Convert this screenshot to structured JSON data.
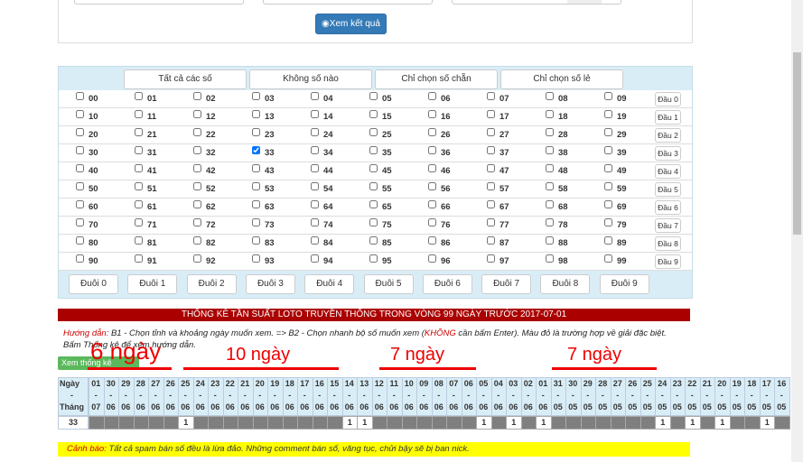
{
  "form": {
    "button": "Xem kết quả"
  },
  "quick_select": [
    "Tất cả các số",
    "Không số nào",
    "Chỉ chọn số chẵn",
    "Chỉ chọn số lẻ"
  ],
  "numbers": [
    [
      "00",
      "01",
      "02",
      "03",
      "04",
      "05",
      "06",
      "07",
      "08",
      "09"
    ],
    [
      "10",
      "11",
      "12",
      "13",
      "14",
      "15",
      "16",
      "17",
      "18",
      "19"
    ],
    [
      "20",
      "21",
      "22",
      "23",
      "24",
      "25",
      "26",
      "27",
      "28",
      "29"
    ],
    [
      "30",
      "31",
      "32",
      "33",
      "34",
      "35",
      "36",
      "37",
      "38",
      "39"
    ],
    [
      "40",
      "41",
      "42",
      "43",
      "44",
      "45",
      "46",
      "47",
      "48",
      "49"
    ],
    [
      "50",
      "51",
      "52",
      "53",
      "54",
      "55",
      "56",
      "57",
      "58",
      "59"
    ],
    [
      "60",
      "61",
      "62",
      "63",
      "64",
      "65",
      "66",
      "67",
      "68",
      "69"
    ],
    [
      "70",
      "71",
      "72",
      "73",
      "74",
      "75",
      "76",
      "77",
      "78",
      "79"
    ],
    [
      "80",
      "81",
      "82",
      "83",
      "84",
      "85",
      "86",
      "87",
      "88",
      "89"
    ],
    [
      "90",
      "91",
      "92",
      "93",
      "94",
      "95",
      "96",
      "97",
      "98",
      "99"
    ]
  ],
  "checked": [
    "33"
  ],
  "heads": [
    "Đầu 0",
    "Đầu 1",
    "Đầu 2",
    "Đầu 3",
    "Đầu 4",
    "Đầu 5",
    "Đầu 6",
    "Đầu 7",
    "Đầu 8",
    "Đầu 9"
  ],
  "tails": [
    "Đuôi 0",
    "Đuôi 1",
    "Đuôi 2",
    "Đuôi 3",
    "Đuôi 4",
    "Đuôi 5",
    "Đuôi 6",
    "Đuôi 7",
    "Đuôi 8",
    "Đuôi 9"
  ],
  "stats": {
    "title": "THỐNG KÊ TẦN SUẤT LOTO TRUYỀN THỐNG TRONG VÒNG 99 NGÀY TRƯỚC 2017-07-01",
    "guide": {
      "label": "Hướng dẫn:",
      "part1": " B1 - Chọn tỉnh và khoảng ngày muốn xem. => B2 - Chọn nhanh bộ số muốn xem (",
      "emphasis": "KHÔNG",
      "part2": " cần bấm Enter). Màu đỏ là trường hợp về giải đặc biệt.",
      "line2": "Bấm Thống kê để xem hướng dẫn."
    },
    "button": "Xem thống kê",
    "annotations": [
      "6 ngày",
      "10 ngày",
      "7 ngày",
      "7 ngày"
    ],
    "table": {
      "day_header": "Ngày",
      "separator": "-",
      "month_header": "Tháng",
      "days": [
        "01",
        "30",
        "29",
        "28",
        "27",
        "26",
        "25",
        "24",
        "23",
        "22",
        "21",
        "20",
        "19",
        "18",
        "17",
        "16",
        "15",
        "14",
        "13",
        "12",
        "11",
        "10",
        "09",
        "08",
        "07",
        "06",
        "05",
        "04",
        "03",
        "02",
        "01",
        "31",
        "30",
        "29",
        "28",
        "27",
        "26",
        "25",
        "24",
        "23",
        "22",
        "21",
        "20",
        "19",
        "18",
        "17",
        "16"
      ],
      "months": [
        "07",
        "06",
        "06",
        "06",
        "06",
        "06",
        "06",
        "06",
        "06",
        "06",
        "06",
        "06",
        "06",
        "06",
        "06",
        "06",
        "06",
        "06",
        "06",
        "06",
        "06",
        "06",
        "06",
        "06",
        "06",
        "06",
        "06",
        "06",
        "06",
        "06",
        "06",
        "05",
        "05",
        "05",
        "05",
        "05",
        "05",
        "05",
        "05",
        "05",
        "05",
        "05",
        "05",
        "05",
        "05",
        "05",
        "05"
      ],
      "rows": [
        {
          "label": "33",
          "cells": [
            null,
            null,
            null,
            null,
            null,
            null,
            1,
            null,
            null,
            null,
            null,
            null,
            null,
            null,
            null,
            null,
            null,
            1,
            1,
            null,
            null,
            null,
            null,
            null,
            null,
            null,
            1,
            null,
            1,
            null,
            1,
            null,
            null,
            null,
            null,
            null,
            null,
            null,
            1,
            null,
            1,
            null,
            1,
            null,
            null,
            1,
            null
          ]
        }
      ]
    }
  },
  "warning": {
    "label": "Cảnh báo:",
    "text": " Tất cả spam bán số đều là lừa đảo. Những comment bán số, văng tục, chửi bậy sẽ bị ban nick."
  }
}
